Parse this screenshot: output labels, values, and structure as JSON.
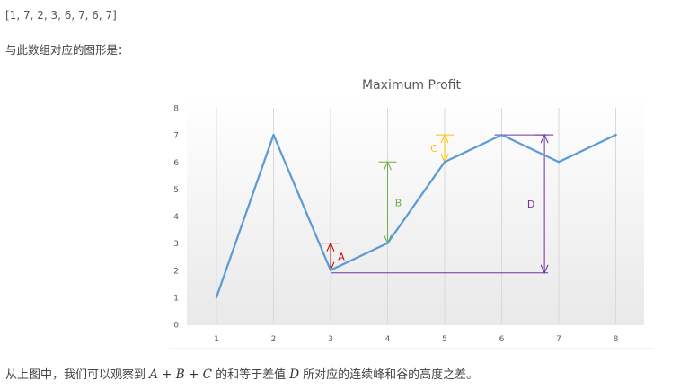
{
  "array_line": "[1, 7, 2, 3, 6, 7, 6, 7]",
  "intro": "与此数组对应的图形是：",
  "chart_data": {
    "type": "line",
    "title": "Maximum Profit",
    "x": [
      1,
      2,
      3,
      4,
      5,
      6,
      7,
      8
    ],
    "series": [
      {
        "values": [
          1,
          7,
          2,
          3,
          6,
          7,
          6,
          7
        ],
        "color": "#5b9bd5"
      }
    ],
    "ylim": [
      0,
      8
    ],
    "yticks": [
      "0",
      "1",
      "2",
      "3",
      "4",
      "5",
      "6",
      "7",
      "8"
    ],
    "xticks": [
      "1",
      "2",
      "3",
      "4",
      "5",
      "6",
      "7",
      "8"
    ],
    "grid": "vertical",
    "annotations": [
      {
        "label": "A",
        "color": "#c00000",
        "x": 3,
        "from": 2,
        "to": 3
      },
      {
        "label": "B",
        "color": "#70ad47",
        "x": 4,
        "from": 3,
        "to": 6
      },
      {
        "label": "C",
        "color": "#ffc000",
        "x": 5,
        "from": 6,
        "to": 7
      },
      {
        "label": "D",
        "color": "#7030a0",
        "x": 6.75,
        "from": 1.9,
        "to": 7
      }
    ]
  },
  "footer": {
    "pre": "从上图中，我们可以观察到 ",
    "expr": "A + B + C",
    "mid": " 的和等于差值 ",
    "var": "D",
    "post": " 所对应的连续峰和谷的高度之差。"
  }
}
